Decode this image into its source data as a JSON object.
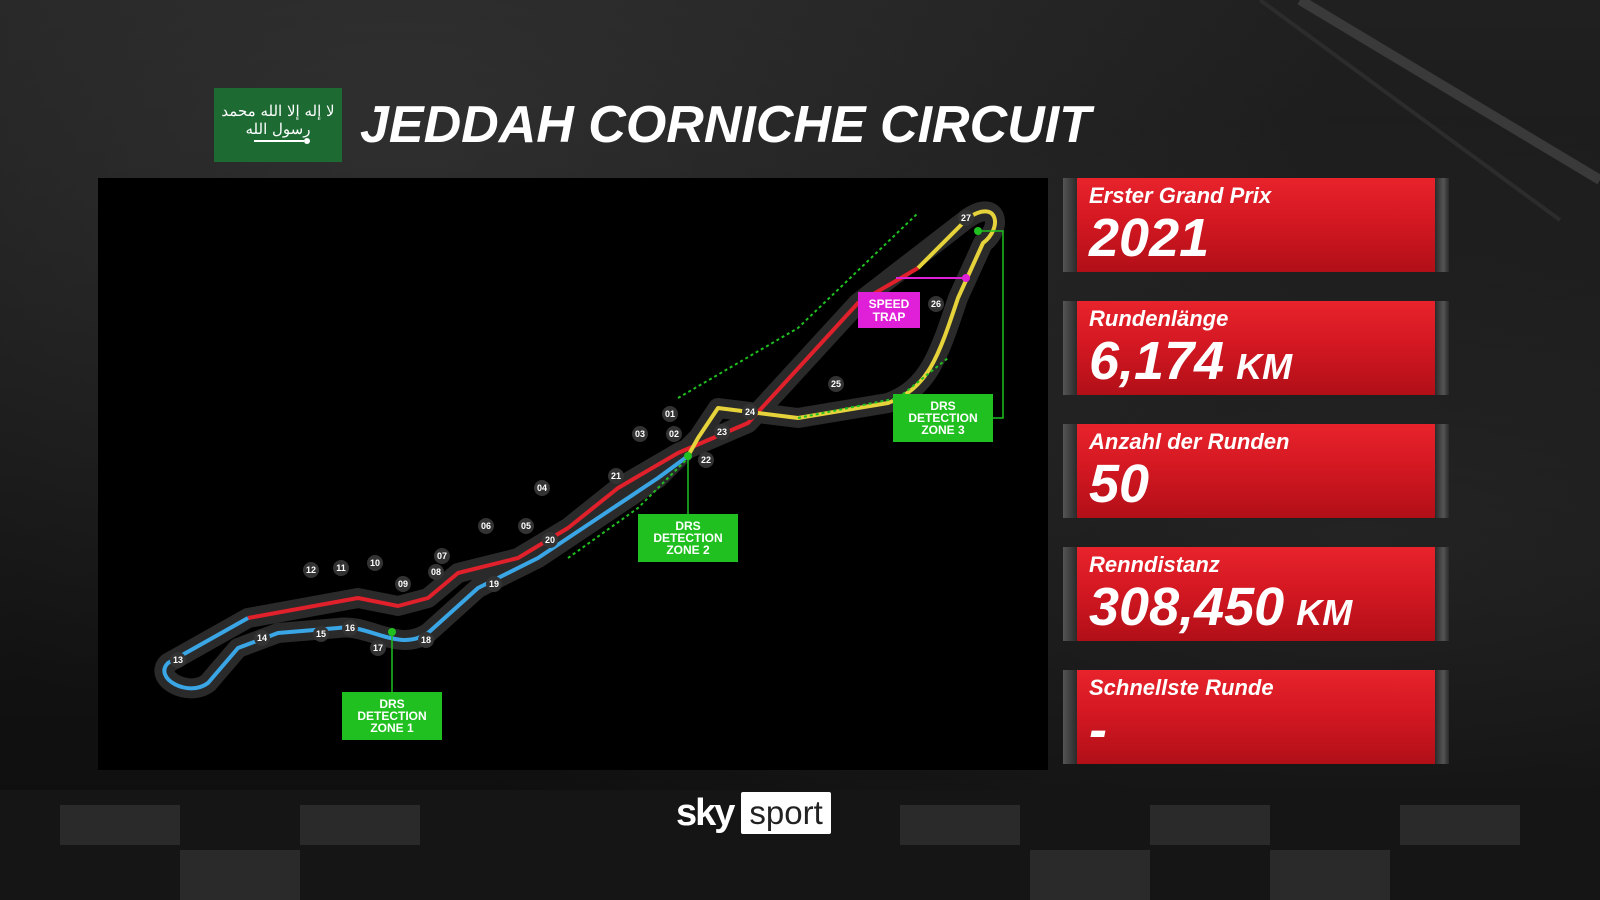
{
  "header": {
    "flag_text": "لا إله إلا الله محمد رسول الله",
    "title": "JEDDAH CORNICHE CIRCUIT"
  },
  "map": {
    "turns": [
      "01",
      "02",
      "03",
      "04",
      "05",
      "06",
      "07",
      "08",
      "09",
      "10",
      "11",
      "12",
      "13",
      "14",
      "15",
      "16",
      "17",
      "18",
      "19",
      "20",
      "21",
      "22",
      "23",
      "24",
      "25",
      "26",
      "27"
    ],
    "labels": {
      "speed_trap": [
        "SPEED",
        "TRAP"
      ],
      "drs1": [
        "DRS",
        "DETECTION",
        "ZONE 1"
      ],
      "drs2": [
        "DRS",
        "DETECTION",
        "ZONE 2"
      ],
      "drs3": [
        "DRS",
        "DETECTION",
        "ZONE 3"
      ]
    },
    "colors": {
      "sector1": "#e0202a",
      "sector2": "#3aa6e6",
      "sector3": "#e6d23a",
      "drs": "#1fc01f",
      "speed_trap": "#e020d8"
    }
  },
  "stats": [
    {
      "label": "Erster Grand Prix",
      "value": "2021",
      "unit": ""
    },
    {
      "label": "Rundenlänge",
      "value": "6,174",
      "unit": "KM"
    },
    {
      "label": "Anzahl der Runden",
      "value": "50",
      "unit": ""
    },
    {
      "label": "Renndistanz",
      "value": "308,450",
      "unit": "KM"
    },
    {
      "label": "Schnellste Runde",
      "value": "-",
      "unit": ""
    }
  ],
  "logo": {
    "sky": "sky",
    "sport": "sport"
  }
}
